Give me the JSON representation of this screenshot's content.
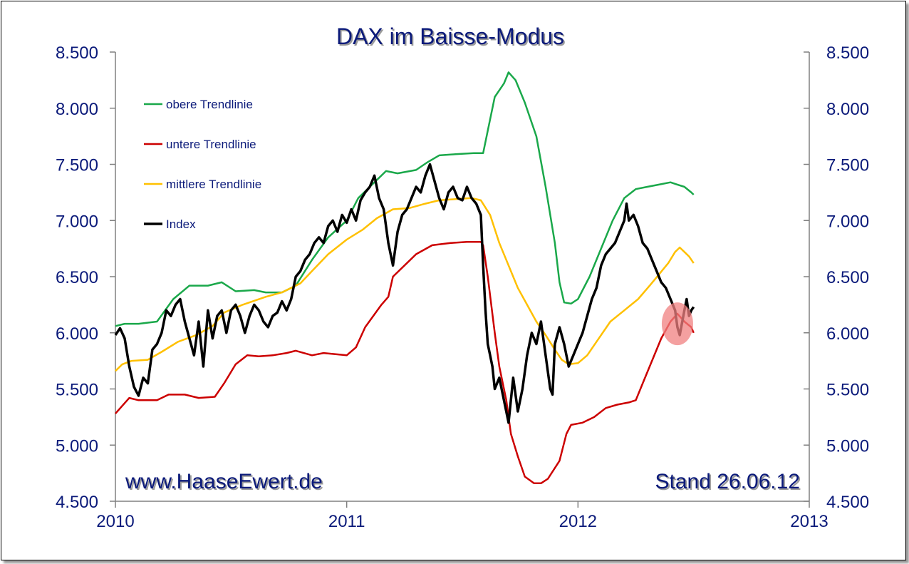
{
  "chart_data": {
    "type": "line",
    "title": "DAX im Baisse-Modus",
    "watermark": "www.HaaseEwert.de",
    "stand": "Stand 26.06.12",
    "xlim": [
      2010,
      2013
    ],
    "ylim": [
      4500,
      8500
    ],
    "x_ticks": [
      "2010",
      "2011",
      "2012",
      "2013"
    ],
    "y_ticks": [
      "8.500",
      "8.000",
      "7.500",
      "7.000",
      "6.500",
      "6.000",
      "5.500",
      "5.000",
      "4.500"
    ],
    "grid": false,
    "legend_position": "top-left",
    "highlight": {
      "x": 2012.43,
      "y": 6080,
      "color": "#f08080"
    },
    "series": [
      {
        "name": "obere Trendlinie",
        "color": "#1aa84a",
        "points": [
          [
            2010.0,
            6060
          ],
          [
            2010.04,
            6080
          ],
          [
            2010.1,
            6080
          ],
          [
            2010.18,
            6100
          ],
          [
            2010.25,
            6300
          ],
          [
            2010.32,
            6420
          ],
          [
            2010.4,
            6420
          ],
          [
            2010.46,
            6450
          ],
          [
            2010.52,
            6370
          ],
          [
            2010.6,
            6380
          ],
          [
            2010.65,
            6360
          ],
          [
            2010.72,
            6360
          ],
          [
            2010.78,
            6420
          ],
          [
            2010.85,
            6650
          ],
          [
            2010.92,
            6850
          ],
          [
            2011.0,
            7000
          ],
          [
            2011.05,
            7200
          ],
          [
            2011.1,
            7300
          ],
          [
            2011.17,
            7440
          ],
          [
            2011.22,
            7420
          ],
          [
            2011.3,
            7450
          ],
          [
            2011.35,
            7520
          ],
          [
            2011.4,
            7580
          ],
          [
            2011.47,
            7590
          ],
          [
            2011.55,
            7600
          ],
          [
            2011.59,
            7600
          ],
          [
            2011.61,
            7800
          ],
          [
            2011.64,
            8100
          ],
          [
            2011.68,
            8220
          ],
          [
            2011.7,
            8320
          ],
          [
            2011.73,
            8250
          ],
          [
            2011.77,
            8050
          ],
          [
            2011.82,
            7750
          ],
          [
            2011.86,
            7300
          ],
          [
            2011.9,
            6800
          ],
          [
            2011.92,
            6450
          ],
          [
            2011.94,
            6270
          ],
          [
            2011.97,
            6260
          ],
          [
            2012.0,
            6300
          ],
          [
            2012.05,
            6500
          ],
          [
            2012.1,
            6750
          ],
          [
            2012.15,
            7000
          ],
          [
            2012.2,
            7200
          ],
          [
            2012.25,
            7280
          ],
          [
            2012.3,
            7300
          ],
          [
            2012.35,
            7320
          ],
          [
            2012.4,
            7340
          ],
          [
            2012.43,
            7320
          ],
          [
            2012.46,
            7300
          ],
          [
            2012.49,
            7250
          ],
          [
            2012.5,
            7230
          ]
        ]
      },
      {
        "name": "untere Trendlinie",
        "color": "#cc0000",
        "points": [
          [
            2010.0,
            5280
          ],
          [
            2010.03,
            5350
          ],
          [
            2010.06,
            5420
          ],
          [
            2010.1,
            5400
          ],
          [
            2010.18,
            5400
          ],
          [
            2010.23,
            5450
          ],
          [
            2010.3,
            5450
          ],
          [
            2010.36,
            5420
          ],
          [
            2010.43,
            5430
          ],
          [
            2010.47,
            5550
          ],
          [
            2010.52,
            5720
          ],
          [
            2010.57,
            5800
          ],
          [
            2010.62,
            5790
          ],
          [
            2010.68,
            5800
          ],
          [
            2010.74,
            5820
          ],
          [
            2010.78,
            5840
          ],
          [
            2010.85,
            5800
          ],
          [
            2010.9,
            5820
          ],
          [
            2011.0,
            5800
          ],
          [
            2011.04,
            5870
          ],
          [
            2011.08,
            6050
          ],
          [
            2011.15,
            6250
          ],
          [
            2011.18,
            6320
          ],
          [
            2011.2,
            6500
          ],
          [
            2011.25,
            6600
          ],
          [
            2011.3,
            6700
          ],
          [
            2011.37,
            6780
          ],
          [
            2011.45,
            6800
          ],
          [
            2011.52,
            6810
          ],
          [
            2011.58,
            6810
          ],
          [
            2011.59,
            6780
          ],
          [
            2011.61,
            6500
          ],
          [
            2011.64,
            6000
          ],
          [
            2011.66,
            5700
          ],
          [
            2011.69,
            5400
          ],
          [
            2011.71,
            5100
          ],
          [
            2011.74,
            4900
          ],
          [
            2011.77,
            4720
          ],
          [
            2011.81,
            4660
          ],
          [
            2011.84,
            4660
          ],
          [
            2011.87,
            4700
          ],
          [
            2011.92,
            4860
          ],
          [
            2011.95,
            5100
          ],
          [
            2011.97,
            5180
          ],
          [
            2012.02,
            5200
          ],
          [
            2012.07,
            5250
          ],
          [
            2012.12,
            5330
          ],
          [
            2012.17,
            5360
          ],
          [
            2012.22,
            5380
          ],
          [
            2012.25,
            5400
          ],
          [
            2012.28,
            5550
          ],
          [
            2012.32,
            5750
          ],
          [
            2012.36,
            5950
          ],
          [
            2012.4,
            6100
          ],
          [
            2012.43,
            6170
          ],
          [
            2012.46,
            6100
          ],
          [
            2012.49,
            6050
          ],
          [
            2012.5,
            6000
          ]
        ]
      },
      {
        "name": "mittlere Trendlinie",
        "color": "#ffc000",
        "points": [
          [
            2010.0,
            5660
          ],
          [
            2010.03,
            5720
          ],
          [
            2010.07,
            5750
          ],
          [
            2010.14,
            5760
          ],
          [
            2010.2,
            5830
          ],
          [
            2010.27,
            5920
          ],
          [
            2010.35,
            5980
          ],
          [
            2010.42,
            6060
          ],
          [
            2010.47,
            6180
          ],
          [
            2010.55,
            6250
          ],
          [
            2010.65,
            6320
          ],
          [
            2010.72,
            6360
          ],
          [
            2010.8,
            6440
          ],
          [
            2010.85,
            6550
          ],
          [
            2010.92,
            6700
          ],
          [
            2011.0,
            6830
          ],
          [
            2011.07,
            6920
          ],
          [
            2011.13,
            7020
          ],
          [
            2011.2,
            7100
          ],
          [
            2011.27,
            7110
          ],
          [
            2011.34,
            7150
          ],
          [
            2011.4,
            7180
          ],
          [
            2011.47,
            7190
          ],
          [
            2011.54,
            7200
          ],
          [
            2011.58,
            7180
          ],
          [
            2011.62,
            7050
          ],
          [
            2011.66,
            6800
          ],
          [
            2011.7,
            6600
          ],
          [
            2011.74,
            6400
          ],
          [
            2011.78,
            6250
          ],
          [
            2011.82,
            6100
          ],
          [
            2011.86,
            5980
          ],
          [
            2011.9,
            5850
          ],
          [
            2011.93,
            5760
          ],
          [
            2011.96,
            5720
          ],
          [
            2012.0,
            5730
          ],
          [
            2012.04,
            5800
          ],
          [
            2012.09,
            5950
          ],
          [
            2012.14,
            6100
          ],
          [
            2012.2,
            6200
          ],
          [
            2012.26,
            6300
          ],
          [
            2012.31,
            6420
          ],
          [
            2012.35,
            6520
          ],
          [
            2012.39,
            6620
          ],
          [
            2012.42,
            6720
          ],
          [
            2012.44,
            6760
          ],
          [
            2012.46,
            6720
          ],
          [
            2012.48,
            6680
          ],
          [
            2012.5,
            6620
          ]
        ]
      },
      {
        "name": "Index",
        "color": "#000000",
        "points": [
          [
            2010.0,
            5980
          ],
          [
            2010.02,
            6040
          ],
          [
            2010.04,
            5950
          ],
          [
            2010.06,
            5700
          ],
          [
            2010.08,
            5520
          ],
          [
            2010.1,
            5440
          ],
          [
            2010.12,
            5600
          ],
          [
            2010.14,
            5550
          ],
          [
            2010.16,
            5850
          ],
          [
            2010.18,
            5900
          ],
          [
            2010.2,
            6000
          ],
          [
            2010.22,
            6200
          ],
          [
            2010.24,
            6150
          ],
          [
            2010.26,
            6250
          ],
          [
            2010.28,
            6300
          ],
          [
            2010.3,
            6100
          ],
          [
            2010.32,
            5950
          ],
          [
            2010.34,
            5800
          ],
          [
            2010.36,
            6100
          ],
          [
            2010.38,
            5700
          ],
          [
            2010.4,
            6200
          ],
          [
            2010.42,
            5950
          ],
          [
            2010.44,
            6150
          ],
          [
            2010.46,
            6200
          ],
          [
            2010.48,
            6000
          ],
          [
            2010.5,
            6200
          ],
          [
            2010.52,
            6250
          ],
          [
            2010.54,
            6150
          ],
          [
            2010.56,
            6000
          ],
          [
            2010.58,
            6150
          ],
          [
            2010.6,
            6250
          ],
          [
            2010.62,
            6200
          ],
          [
            2010.64,
            6100
          ],
          [
            2010.66,
            6050
          ],
          [
            2010.68,
            6150
          ],
          [
            2010.7,
            6180
          ],
          [
            2010.72,
            6280
          ],
          [
            2010.74,
            6200
          ],
          [
            2010.76,
            6300
          ],
          [
            2010.78,
            6500
          ],
          [
            2010.8,
            6550
          ],
          [
            2010.82,
            6650
          ],
          [
            2010.84,
            6700
          ],
          [
            2010.86,
            6800
          ],
          [
            2010.88,
            6850
          ],
          [
            2010.9,
            6800
          ],
          [
            2010.92,
            6950
          ],
          [
            2010.94,
            7000
          ],
          [
            2010.96,
            6900
          ],
          [
            2010.98,
            7050
          ],
          [
            2011.0,
            6980
          ],
          [
            2011.02,
            7100
          ],
          [
            2011.04,
            7000
          ],
          [
            2011.06,
            7180
          ],
          [
            2011.08,
            7250
          ],
          [
            2011.1,
            7300
          ],
          [
            2011.12,
            7400
          ],
          [
            2011.14,
            7200
          ],
          [
            2011.16,
            7100
          ],
          [
            2011.18,
            6800
          ],
          [
            2011.2,
            6600
          ],
          [
            2011.22,
            6900
          ],
          [
            2011.24,
            7050
          ],
          [
            2011.26,
            7100
          ],
          [
            2011.28,
            7200
          ],
          [
            2011.3,
            7300
          ],
          [
            2011.32,
            7250
          ],
          [
            2011.34,
            7400
          ],
          [
            2011.36,
            7500
          ],
          [
            2011.38,
            7350
          ],
          [
            2011.4,
            7200
          ],
          [
            2011.42,
            7100
          ],
          [
            2011.44,
            7250
          ],
          [
            2011.46,
            7300
          ],
          [
            2011.48,
            7200
          ],
          [
            2011.5,
            7180
          ],
          [
            2011.52,
            7300
          ],
          [
            2011.54,
            7200
          ],
          [
            2011.56,
            7150
          ],
          [
            2011.58,
            7050
          ],
          [
            2011.59,
            6600
          ],
          [
            2011.6,
            6200
          ],
          [
            2011.61,
            5900
          ],
          [
            2011.62,
            5800
          ],
          [
            2011.63,
            5700
          ],
          [
            2011.64,
            5500
          ],
          [
            2011.66,
            5600
          ],
          [
            2011.68,
            5400
          ],
          [
            2011.7,
            5200
          ],
          [
            2011.72,
            5600
          ],
          [
            2011.74,
            5300
          ],
          [
            2011.76,
            5500
          ],
          [
            2011.78,
            5800
          ],
          [
            2011.8,
            6000
          ],
          [
            2011.82,
            5900
          ],
          [
            2011.84,
            6100
          ],
          [
            2011.86,
            5800
          ],
          [
            2011.88,
            5500
          ],
          [
            2011.89,
            5450
          ],
          [
            2011.9,
            5900
          ],
          [
            2011.92,
            6050
          ],
          [
            2011.94,
            5900
          ],
          [
            2011.96,
            5700
          ],
          [
            2011.98,
            5800
          ],
          [
            2012.0,
            5900
          ],
          [
            2012.02,
            6000
          ],
          [
            2012.04,
            6150
          ],
          [
            2012.06,
            6300
          ],
          [
            2012.08,
            6400
          ],
          [
            2012.1,
            6600
          ],
          [
            2012.12,
            6700
          ],
          [
            2012.14,
            6750
          ],
          [
            2012.16,
            6800
          ],
          [
            2012.18,
            6900
          ],
          [
            2012.2,
            7000
          ],
          [
            2012.21,
            7150
          ],
          [
            2012.22,
            7000
          ],
          [
            2012.24,
            7050
          ],
          [
            2012.26,
            6950
          ],
          [
            2012.28,
            6800
          ],
          [
            2012.3,
            6750
          ],
          [
            2012.32,
            6650
          ],
          [
            2012.34,
            6550
          ],
          [
            2012.36,
            6450
          ],
          [
            2012.38,
            6400
          ],
          [
            2012.4,
            6300
          ],
          [
            2012.42,
            6200
          ],
          [
            2012.43,
            6050
          ],
          [
            2012.44,
            5980
          ],
          [
            2012.46,
            6200
          ],
          [
            2012.47,
            6300
          ],
          [
            2012.48,
            6150
          ],
          [
            2012.49,
            6200
          ],
          [
            2012.5,
            6230
          ]
        ]
      }
    ]
  }
}
